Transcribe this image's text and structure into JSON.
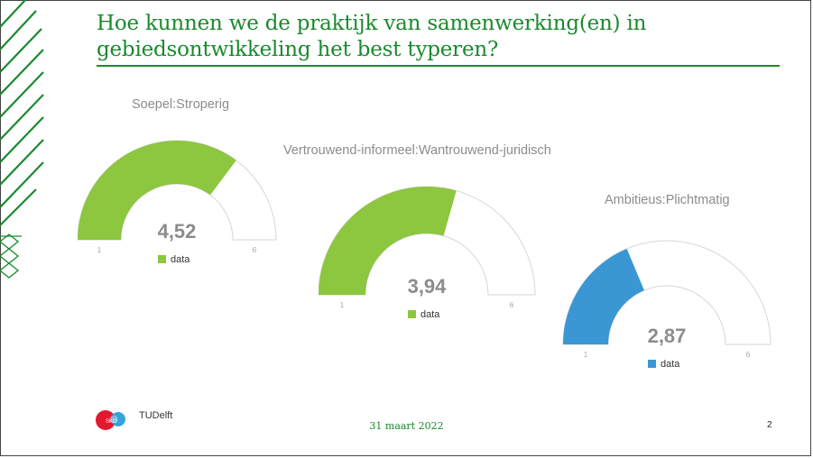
{
  "slide": {
    "title": "Hoe kunnen we de praktijk van samenwerking(en) in gebiedsontwikkeling het best typeren?",
    "date": "31 maart 2022",
    "page_number": "2",
    "accent_color": "#1a8a2e"
  },
  "logos": {
    "sko_text": "SKO",
    "tudelft_text": "TUDelft"
  },
  "chart_data": [
    {
      "type": "gauge",
      "title": "Soepel:Stroperig",
      "value": 4.52,
      "value_label": "4,52",
      "min": 1,
      "max": 6,
      "min_label": "1",
      "max_label": "6",
      "legend": "data",
      "color": "#8dc63f"
    },
    {
      "type": "gauge",
      "title": "Vertrouwend-informeel:Wantrouwend-juridisch",
      "value": 3.94,
      "value_label": "3,94",
      "min": 1,
      "max": 6,
      "min_label": "1",
      "max_label": "6",
      "legend": "data",
      "color": "#8dc63f"
    },
    {
      "type": "gauge",
      "title": "Ambitieus:Plichtmatig",
      "value": 2.87,
      "value_label": "2,87",
      "min": 1,
      "max": 6,
      "min_label": "1",
      "max_label": "6",
      "legend": "data",
      "color": "#3a97d4"
    }
  ]
}
